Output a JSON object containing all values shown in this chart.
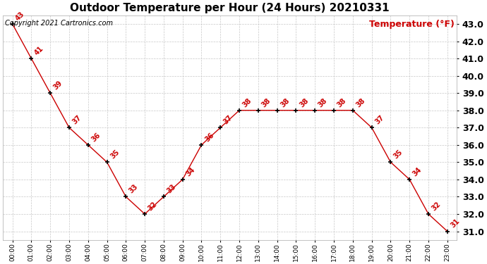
{
  "title": "Outdoor Temperature per Hour (24 Hours) 20210331",
  "copyright_text": "Copyright 2021 Cartronics.com",
  "legend_label": "Temperature (°F)",
  "hours": [
    0,
    1,
    2,
    3,
    4,
    5,
    6,
    7,
    8,
    9,
    10,
    11,
    12,
    13,
    14,
    15,
    16,
    17,
    18,
    19,
    20,
    21,
    22,
    23
  ],
  "hour_labels": [
    "00:00",
    "01:00",
    "02:00",
    "03:00",
    "04:00",
    "05:00",
    "06:00",
    "07:00",
    "08:00",
    "09:00",
    "10:00",
    "11:00",
    "12:00",
    "13:00",
    "14:00",
    "15:00",
    "16:00",
    "17:00",
    "18:00",
    "19:00",
    "20:00",
    "21:00",
    "22:00",
    "23:00"
  ],
  "temperatures": [
    43,
    41,
    39,
    37,
    36,
    35,
    33,
    32,
    33,
    34,
    36,
    37,
    38,
    38,
    38,
    38,
    38,
    38,
    38,
    37,
    35,
    34,
    32,
    31
  ],
  "line_color": "#cc0000",
  "marker_color": "black",
  "label_color": "#cc0000",
  "background_color": "#ffffff",
  "grid_color": "#c8c8c8",
  "ylim_min": 31.0,
  "ylim_max": 43.0,
  "yticks": [
    31.0,
    32.0,
    33.0,
    34.0,
    35.0,
    36.0,
    37.0,
    38.0,
    39.0,
    40.0,
    41.0,
    42.0,
    43.0
  ],
  "title_fontsize": 11,
  "copyright_fontsize": 7,
  "legend_fontsize": 9,
  "label_fontsize": 7,
  "ytick_fontsize": 9,
  "xtick_fontsize": 6.5
}
